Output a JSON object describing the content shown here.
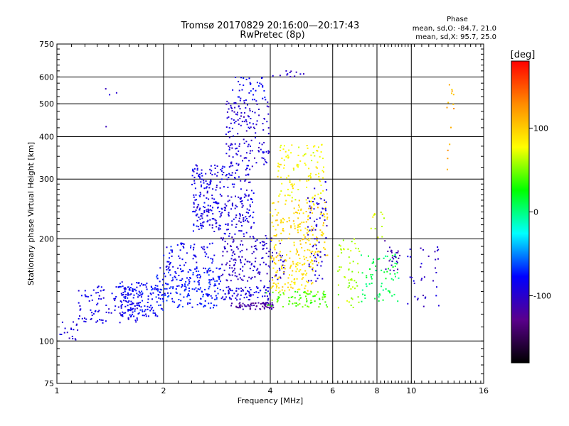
{
  "chart_data": {
    "type": "scatter",
    "title": "Tromsø 20170829 20:16:00—20:17:43",
    "subtitle": "RwPretec (8p)",
    "xlabel": "Frequency [MHz]",
    "ylabel": "Stationary phase Virtual Height [km]",
    "x_scale": "log",
    "y_scale": "log",
    "xlim": [
      1,
      16
    ],
    "ylim": [
      75,
      750
    ],
    "x_ticks": [
      1,
      2,
      4,
      6,
      8,
      10,
      16
    ],
    "x_tick_labels": [
      "1",
      "2",
      "4",
      "6",
      "8",
      "10",
      "16"
    ],
    "y_ticks": [
      75,
      100,
      200,
      300,
      400,
      500,
      600,
      750
    ],
    "y_tick_labels": [
      "75",
      "100",
      "200",
      "300",
      "400",
      "500",
      "600",
      "750"
    ],
    "grid": true,
    "stats": {
      "heading": "Phase",
      "line_o": "mean, sd,O: -84.7, 21.0",
      "line_x": "mean, sd,X:  95.7, 25.0"
    },
    "colorbar": {
      "label": "[deg]",
      "range": [
        -180,
        180
      ],
      "ticks": [
        100,
        0,
        -100
      ],
      "tick_labels": [
        "100",
        "0",
        "-100"
      ],
      "colors": [
        "#000000",
        "#5a008c",
        "#0000ff",
        "#00ffff",
        "#00ff00",
        "#ffff00",
        "#ff8c00",
        "#ff0000"
      ]
    },
    "clusters": [
      {
        "x": [
          1.0,
          1.15
        ],
        "y": [
          100,
          115
        ],
        "phase": -95,
        "n": 18
      },
      {
        "x": [
          1.15,
          1.7
        ],
        "y": [
          112,
          145
        ],
        "phase": -90,
        "n": 120
      },
      {
        "x": [
          1.5,
          2.0
        ],
        "y": [
          118,
          150
        ],
        "phase": -80,
        "n": 140
      },
      {
        "x": [
          1.9,
          2.9
        ],
        "y": [
          125,
          165
        ],
        "phase": -75,
        "n": 200
      },
      {
        "x": [
          2.0,
          2.8
        ],
        "y": [
          160,
          195
        ],
        "phase": -85,
        "n": 70
      },
      {
        "x": [
          2.4,
          2.9
        ],
        "y": [
          210,
          330
        ],
        "phase": -88,
        "n": 170
      },
      {
        "x": [
          2.9,
          3.6
        ],
        "y": [
          205,
          330
        ],
        "phase": -92,
        "n": 150
      },
      {
        "x": [
          3.0,
          4.0
        ],
        "y": [
          330,
          510
        ],
        "phase": -95,
        "n": 150
      },
      {
        "x": [
          3.1,
          3.9
        ],
        "y": [
          510,
          600
        ],
        "phase": -85,
        "n": 40
      },
      {
        "x": [
          2.9,
          4.4
        ],
        "y": [
          150,
          205
        ],
        "phase": -100,
        "n": 170
      },
      {
        "x": [
          3.1,
          4.1
        ],
        "y": [
          124,
          130
        ],
        "phase": -118,
        "n": 80
      },
      {
        "x": [
          2.9,
          4.0
        ],
        "y": [
          132,
          145
        ],
        "phase": -90,
        "n": 80
      },
      {
        "x": [
          4.0,
          5.8
        ],
        "y": [
          170,
          260
        ],
        "phase": 95,
        "n": 190
      },
      {
        "x": [
          4.2,
          5.7
        ],
        "y": [
          260,
          380
        ],
        "phase": 80,
        "n": 110
      },
      {
        "x": [
          4.0,
          5.3
        ],
        "y": [
          140,
          170
        ],
        "phase": 90,
        "n": 90
      },
      {
        "x": [
          3.9,
          5.9
        ],
        "y": [
          126,
          140
        ],
        "phase": 40,
        "n": 80
      },
      {
        "x": [
          5.1,
          5.8
        ],
        "y": [
          150,
          300
        ],
        "phase": -95,
        "n": 70
      },
      {
        "x": [
          6.2,
          7.2
        ],
        "y": [
          125,
          200
        ],
        "phase": 60,
        "n": 55
      },
      {
        "x": [
          7.2,
          9.3
        ],
        "y": [
          130,
          180
        ],
        "phase": 10,
        "n": 70
      },
      {
        "x": [
          8.4,
          9.3
        ],
        "y": [
          160,
          200
        ],
        "phase": -110,
        "n": 25
      },
      {
        "x": [
          9.6,
          12.0
        ],
        "y": [
          125,
          195
        ],
        "phase": -100,
        "n": 35
      },
      {
        "x": [
          7.7,
          8.4
        ],
        "y": [
          200,
          240
        ],
        "phase": 70,
        "n": 12
      },
      {
        "x": [
          4.0,
          5.0
        ],
        "y": [
          600,
          625
        ],
        "phase": -100,
        "n": 12
      },
      {
        "x": [
          12.6,
          13.2
        ],
        "y": [
          250,
          620
        ],
        "phase": 115,
        "n": 14
      },
      {
        "x": [
          1.3,
          1.5
        ],
        "y": [
          220,
          640
        ],
        "phase": -100,
        "n": 4
      }
    ]
  }
}
